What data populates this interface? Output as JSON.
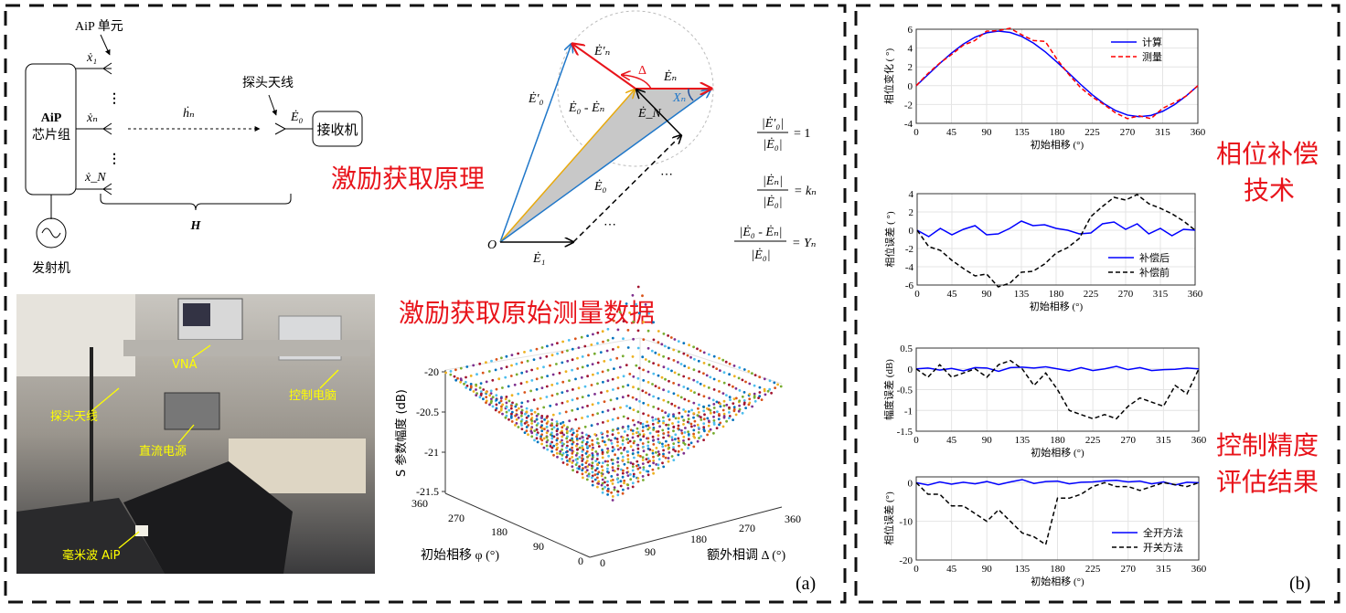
{
  "panel_labels": {
    "a": "(a)",
    "b": "(b)"
  },
  "block_diagram": {
    "aip_unit": "AiP 单元",
    "chip_line1": "AiP",
    "chip_line2": "芯片组",
    "x1": "ẋ₁",
    "xn": "ẋₙ",
    "xN": "ẋ_N",
    "hn": "ḣₙ",
    "probe": "探头天线",
    "E0": "Ė₀",
    "receiver": "接收机",
    "H": "H",
    "transmitter": "发射机",
    "dots": "⋮"
  },
  "titles": {
    "principle": "激励获取原理",
    "raw_data": "激励获取原始测量数据",
    "phase_comp_1": "相位补偿",
    "phase_comp_2": "技术",
    "accuracy_1": "控制精度",
    "accuracy_2": "评估结果"
  },
  "vector_diagram": {
    "O": "O",
    "E1": "Ė₁",
    "E0": "Ė₀",
    "E0_prime": "Ė′₀",
    "En": "Ėₙ",
    "En_prime": "Ė′ₙ",
    "EN": "Ė_N",
    "E0_minus_En": "Ė₀ - Ėₙ",
    "delta": "Δ",
    "Xn": "Xₙ",
    "ellipsis": "⋯",
    "colors": {
      "blue": "#1f77c9",
      "red": "#e8141b",
      "orange": "#e8a90c",
      "gray_fill": "#c8c8c8"
    }
  },
  "formulas": [
    {
      "num": "|Ė′₀|",
      "den": "|Ė₀|",
      "rhs": "= 1"
    },
    {
      "num": "|Ėₙ|",
      "den": "|Ė₀|",
      "rhs": "= kₙ"
    },
    {
      "num": "|Ė₀ - Ėₙ|",
      "den": "|Ė₀|",
      "rhs": "= Yₙ"
    }
  ],
  "photo_labels": {
    "vna": "VNA",
    "probe": "探头天线",
    "pc": "控制电脑",
    "dc": "直流电源",
    "aip": "毫米波 AiP"
  },
  "surface_plot": {
    "zlabel": "S 参数幅度 (dB)",
    "zticks": [
      "-20",
      "-20.5",
      "-21",
      "-21.5"
    ],
    "phi_label": "初始相移 φ (°)",
    "phi_ticks": [
      "360",
      "270",
      "180",
      "90",
      "0"
    ],
    "delta_label": "额外相调 Δ (°)",
    "delta_ticks": [
      "0",
      "90",
      "180",
      "270",
      "360"
    ]
  },
  "chart_data": [
    {
      "type": "line",
      "xlabel": "初始相移 (°)",
      "ylabel": "相位变化 (  °)",
      "xlim": [
        0,
        360
      ],
      "ylim": [
        -4,
        6
      ],
      "xticks": [
        0,
        45,
        90,
        135,
        180,
        225,
        270,
        315,
        360
      ],
      "yticks": [
        -4,
        -2,
        0,
        2,
        4,
        6
      ],
      "grid": true,
      "legend": "top-right",
      "x": [
        0,
        15,
        30,
        45,
        60,
        75,
        90,
        105,
        120,
        135,
        150,
        165,
        180,
        195,
        210,
        225,
        240,
        255,
        270,
        285,
        300,
        315,
        330,
        345,
        360
      ],
      "series": [
        {
          "name": "计算",
          "color": "#0000ff",
          "dash": false,
          "values": [
            0,
            1.17,
            2.35,
            3.46,
            4.41,
            5.15,
            5.62,
            5.8,
            5.66,
            5.23,
            4.52,
            3.59,
            2.5,
            1.33,
            0.15,
            -0.96,
            -1.91,
            -2.65,
            -3.12,
            -3.3,
            -3.16,
            -2.73,
            -2.02,
            -1.09,
            0
          ]
        },
        {
          "name": "测量",
          "color": "#ff0000",
          "dash": true,
          "values": [
            0,
            1.3,
            2.4,
            3.3,
            4.3,
            4.8,
            5.8,
            5.85,
            6.1,
            5.4,
            4.8,
            4.7,
            2.8,
            1.2,
            -0.2,
            -1.2,
            -2.0,
            -2.9,
            -3.5,
            -3.2,
            -3.5,
            -2.4,
            -1.8,
            -1.1,
            0
          ]
        }
      ]
    },
    {
      "type": "line",
      "xlabel": "初始相移 (°)",
      "ylabel": "相位误差 (  °)",
      "xlim": [
        0,
        360
      ],
      "ylim": [
        -6,
        4
      ],
      "xticks": [
        0,
        45,
        90,
        135,
        180,
        225,
        270,
        315,
        360
      ],
      "yticks": [
        -6,
        -4,
        -2,
        0,
        2,
        4
      ],
      "grid": true,
      "legend": "bottom-right",
      "x": [
        0,
        15,
        30,
        45,
        60,
        75,
        90,
        105,
        120,
        135,
        150,
        165,
        180,
        195,
        210,
        225,
        240,
        255,
        270,
        285,
        300,
        315,
        330,
        345,
        360
      ],
      "series": [
        {
          "name": "补偿后",
          "color": "#0000ff",
          "dash": false,
          "values": [
            0,
            -0.7,
            0.2,
            -0.5,
            0.1,
            0.5,
            -0.5,
            -0.4,
            0.2,
            1.0,
            0.5,
            0.6,
            0.2,
            0.0,
            -0.4,
            -0.3,
            0.7,
            0.9,
            0.1,
            0.7,
            -0.4,
            0.2,
            -0.6,
            0.1,
            0
          ]
        },
        {
          "name": "补偿前",
          "color": "#000000",
          "dash": true,
          "values": [
            0,
            -1.8,
            -2.2,
            -3.3,
            -4.2,
            -5,
            -4.8,
            -6.2,
            -5.8,
            -4.6,
            -4.5,
            -3.7,
            -2.5,
            -1.9,
            -0.9,
            1.5,
            2.6,
            3.6,
            3.3,
            3.9,
            2.9,
            2.4,
            1.8,
            1.0,
            0
          ]
        }
      ]
    },
    {
      "type": "line",
      "xlabel": "初始相移 (°)",
      "ylabel": "幅度误差 (dB)",
      "xlim": [
        0,
        360
      ],
      "ylim": [
        -1.5,
        0.5
      ],
      "xticks": [
        0,
        45,
        90,
        135,
        180,
        225,
        270,
        315,
        360
      ],
      "yticks": [
        -1.5,
        -1,
        -0.5,
        0,
        0.5
      ],
      "grid": true,
      "x": [
        0,
        15,
        30,
        45,
        60,
        75,
        90,
        105,
        120,
        135,
        150,
        165,
        180,
        195,
        210,
        225,
        240,
        255,
        270,
        285,
        300,
        315,
        330,
        345,
        360
      ],
      "series": [
        {
          "color": "#0000ff",
          "dash": false,
          "values": [
            0,
            0.02,
            -0.03,
            0.01,
            -0.05,
            0.03,
            0.02,
            -0.06,
            0.03,
            0.04,
            0.02,
            0.05,
            0.0,
            -0.05,
            0.03,
            -0.04,
            0.0,
            0.06,
            -0.02,
            0.03,
            -0.04,
            -0.02,
            -0.01,
            0.02,
            0
          ]
        },
        {
          "color": "#000000",
          "dash": true,
          "values": [
            0,
            -0.2,
            0.1,
            -0.2,
            -0.1,
            0.0,
            -0.2,
            0.1,
            0.2,
            0.0,
            -0.4,
            -0.1,
            -0.5,
            -1.0,
            -1.1,
            -1.2,
            -1.1,
            -1.2,
            -0.9,
            -0.7,
            -0.8,
            -0.9,
            -0.4,
            -0.6,
            0
          ]
        }
      ]
    },
    {
      "type": "line",
      "xlabel": "初始相移 (°)",
      "ylabel": "相位误差 (°)",
      "xlim": [
        0,
        360
      ],
      "ylim": [
        -20,
        1.5
      ],
      "xticks": [
        0,
        45,
        90,
        135,
        180,
        225,
        270,
        315,
        360
      ],
      "yticks": [
        -20,
        -10,
        0
      ],
      "grid": true,
      "legend": "bottom-right",
      "x": [
        0,
        15,
        30,
        45,
        60,
        75,
        90,
        105,
        120,
        135,
        150,
        165,
        180,
        195,
        210,
        225,
        240,
        255,
        270,
        285,
        300,
        315,
        330,
        345,
        360
      ],
      "series": [
        {
          "name": "全开方法",
          "color": "#0000ff",
          "dash": false,
          "values": [
            0,
            -0.6,
            0.2,
            -0.4,
            0.1,
            -0.3,
            0.3,
            -0.5,
            0.2,
            0.8,
            -0.2,
            0.3,
            0.4,
            -0.3,
            0.1,
            0.2,
            0.5,
            0.6,
            0.2,
            0.4,
            -0.3,
            0.2,
            -0.6,
            0.1,
            0
          ]
        },
        {
          "name": "开关方法",
          "color": "#000000",
          "dash": true,
          "values": [
            0,
            -3,
            -3,
            -6,
            -6,
            -8,
            -10,
            -7,
            -10,
            -13,
            -14,
            -16,
            -4,
            -4,
            -3,
            -1,
            0,
            -1,
            -1,
            -2,
            -1,
            0,
            -0.5,
            -1,
            0
          ]
        }
      ]
    }
  ]
}
